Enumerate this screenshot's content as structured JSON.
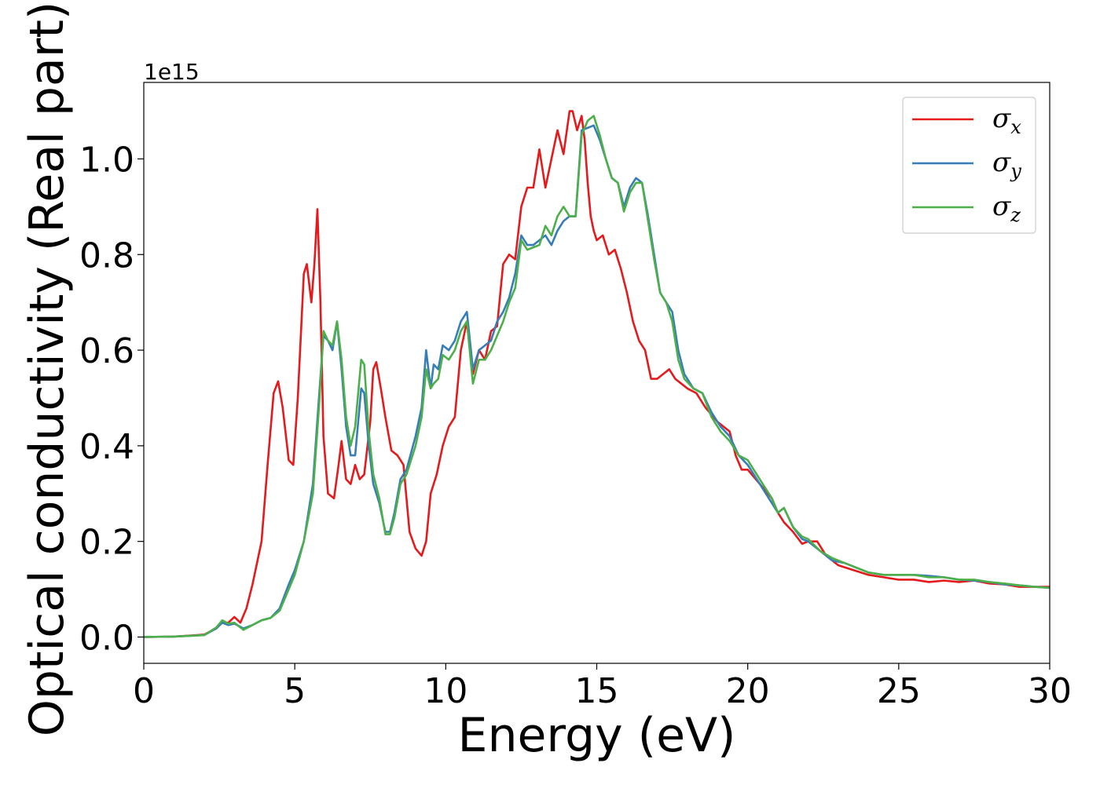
{
  "chart_data": {
    "type": "line",
    "title": "",
    "xlabel": "Energy (eV)",
    "ylabel": "Optical conductivity (Real part)",
    "y_offset_text": "1e15",
    "xlim": [
      0,
      30
    ],
    "ylim": [
      -0.055,
      1.16
    ],
    "x_ticks": [
      0,
      5,
      10,
      15,
      20,
      25,
      30
    ],
    "x_tick_labels": [
      "0",
      "5",
      "10",
      "15",
      "20",
      "25",
      "30"
    ],
    "y_ticks": [
      0.0,
      0.2,
      0.4,
      0.6,
      0.8,
      1.0
    ],
    "y_tick_labels": [
      "0.0",
      "0.2",
      "0.4",
      "0.6",
      "0.8",
      "1.0"
    ],
    "grid": false,
    "legend_position": "top-right",
    "series": [
      {
        "name": "σ",
        "subscript": "x",
        "color": "#e41a1c",
        "x": [
          0,
          1,
          2,
          2.4,
          2.6,
          2.8,
          3.0,
          3.2,
          3.4,
          3.6,
          3.9,
          4.1,
          4.3,
          4.45,
          4.6,
          4.8,
          4.95,
          5.1,
          5.3,
          5.4,
          5.55,
          5.65,
          5.75,
          5.85,
          5.95,
          6.1,
          6.3,
          6.45,
          6.55,
          6.7,
          6.85,
          7.0,
          7.15,
          7.3,
          7.5,
          7.6,
          7.7,
          7.85,
          8.0,
          8.2,
          8.4,
          8.6,
          8.8,
          9.0,
          9.2,
          9.35,
          9.5,
          9.7,
          9.9,
          10.1,
          10.3,
          10.5,
          10.7,
          10.9,
          11.1,
          11.3,
          11.5,
          11.7,
          11.9,
          12.1,
          12.3,
          12.5,
          12.7,
          12.9,
          13.1,
          13.3,
          13.5,
          13.7,
          13.9,
          14.1,
          14.2,
          14.35,
          14.5,
          14.6,
          14.7,
          14.8,
          14.9,
          15.0,
          15.2,
          15.4,
          15.6,
          15.8,
          16.0,
          16.2,
          16.4,
          16.6,
          16.8,
          17.0,
          17.2,
          17.4,
          17.6,
          17.8,
          18.0,
          18.3,
          18.6,
          19.0,
          19.4,
          19.6,
          19.8,
          20.0,
          20.4,
          20.8,
          21.0,
          21.2,
          21.5,
          21.8,
          22.0,
          22.3,
          22.6,
          23.0,
          23.5,
          24.0,
          24.5,
          25.0,
          25.5,
          26.0,
          26.5,
          27.0,
          27.5,
          28.0,
          28.5,
          29.0,
          29.5,
          30.0
        ],
        "y": [
          0,
          0.001,
          0.005,
          0.018,
          0.03,
          0.03,
          0.042,
          0.03,
          0.06,
          0.11,
          0.2,
          0.36,
          0.51,
          0.535,
          0.48,
          0.37,
          0.36,
          0.5,
          0.76,
          0.78,
          0.7,
          0.78,
          0.895,
          0.7,
          0.42,
          0.3,
          0.29,
          0.36,
          0.41,
          0.33,
          0.32,
          0.36,
          0.33,
          0.34,
          0.45,
          0.56,
          0.575,
          0.52,
          0.46,
          0.39,
          0.38,
          0.36,
          0.22,
          0.185,
          0.17,
          0.2,
          0.3,
          0.34,
          0.4,
          0.44,
          0.46,
          0.6,
          0.66,
          0.55,
          0.6,
          0.58,
          0.64,
          0.65,
          0.78,
          0.8,
          0.79,
          0.9,
          0.94,
          0.94,
          1.02,
          0.94,
          1.0,
          1.06,
          1.01,
          1.1,
          1.1,
          1.06,
          1.09,
          1.04,
          0.95,
          0.88,
          0.85,
          0.83,
          0.84,
          0.8,
          0.81,
          0.77,
          0.72,
          0.66,
          0.62,
          0.6,
          0.54,
          0.54,
          0.55,
          0.56,
          0.54,
          0.53,
          0.52,
          0.51,
          0.48,
          0.45,
          0.43,
          0.38,
          0.35,
          0.35,
          0.32,
          0.29,
          0.26,
          0.24,
          0.22,
          0.195,
          0.2,
          0.2,
          0.17,
          0.15,
          0.14,
          0.13,
          0.125,
          0.12,
          0.12,
          0.115,
          0.118,
          0.115,
          0.118,
          0.112,
          0.11,
          0.105,
          0.105,
          0.105
        ]
      },
      {
        "name": "σ",
        "subscript": "y",
        "color": "#377eb8",
        "x": [
          0,
          1,
          2,
          2.4,
          2.6,
          2.8,
          3.0,
          3.3,
          3.6,
          3.9,
          4.2,
          4.5,
          4.8,
          5.0,
          5.3,
          5.6,
          5.8,
          5.95,
          6.1,
          6.25,
          6.4,
          6.55,
          6.7,
          6.85,
          7.0,
          7.2,
          7.3,
          7.45,
          7.6,
          7.8,
          8.0,
          8.15,
          8.3,
          8.5,
          8.7,
          9.0,
          9.2,
          9.35,
          9.5,
          9.6,
          9.75,
          9.9,
          10.1,
          10.3,
          10.5,
          10.7,
          10.9,
          11.1,
          11.3,
          11.5,
          11.7,
          11.9,
          12.1,
          12.3,
          12.5,
          12.7,
          12.9,
          13.1,
          13.3,
          13.5,
          13.7,
          13.9,
          14.1,
          14.3,
          14.5,
          14.7,
          14.9,
          15.1,
          15.3,
          15.5,
          15.7,
          15.9,
          16.1,
          16.3,
          16.5,
          16.7,
          16.9,
          17.1,
          17.3,
          17.5,
          17.7,
          17.9,
          18.2,
          18.5,
          18.8,
          19.1,
          19.4,
          19.7,
          20.0,
          20.4,
          20.8,
          21.0,
          21.2,
          21.5,
          21.8,
          22.0,
          22.4,
          22.8,
          23.2,
          23.6,
          24.0,
          24.5,
          25.0,
          25.5,
          26.0,
          26.5,
          27.0,
          27.5,
          28.0,
          28.5,
          29.0,
          29.5,
          30.0
        ],
        "y": [
          0,
          0.001,
          0.004,
          0.018,
          0.03,
          0.025,
          0.028,
          0.018,
          0.025,
          0.035,
          0.04,
          0.06,
          0.11,
          0.14,
          0.2,
          0.32,
          0.5,
          0.63,
          0.62,
          0.6,
          0.66,
          0.56,
          0.44,
          0.38,
          0.38,
          0.52,
          0.51,
          0.4,
          0.32,
          0.28,
          0.22,
          0.22,
          0.26,
          0.33,
          0.35,
          0.42,
          0.48,
          0.6,
          0.52,
          0.57,
          0.56,
          0.61,
          0.6,
          0.62,
          0.66,
          0.68,
          0.56,
          0.6,
          0.61,
          0.62,
          0.66,
          0.68,
          0.71,
          0.76,
          0.84,
          0.82,
          0.82,
          0.83,
          0.84,
          0.82,
          0.85,
          0.87,
          0.88,
          0.88,
          1.06,
          1.065,
          1.07,
          1.04,
          1.0,
          0.96,
          0.95,
          0.9,
          0.94,
          0.96,
          0.95,
          0.88,
          0.8,
          0.72,
          0.7,
          0.68,
          0.6,
          0.55,
          0.52,
          0.51,
          0.47,
          0.44,
          0.42,
          0.38,
          0.36,
          0.32,
          0.28,
          0.26,
          0.27,
          0.23,
          0.205,
          0.2,
          0.18,
          0.16,
          0.155,
          0.145,
          0.135,
          0.13,
          0.13,
          0.13,
          0.128,
          0.125,
          0.12,
          0.118,
          0.115,
          0.11,
          0.108,
          0.105,
          0.103
        ]
      },
      {
        "name": "σ",
        "subscript": "z",
        "color": "#4daf4a",
        "x": [
          0,
          1,
          2,
          2.4,
          2.6,
          2.8,
          3.0,
          3.3,
          3.6,
          3.9,
          4.2,
          4.5,
          4.8,
          5.0,
          5.3,
          5.6,
          5.8,
          5.95,
          6.1,
          6.25,
          6.4,
          6.55,
          6.7,
          6.85,
          7.0,
          7.2,
          7.3,
          7.45,
          7.6,
          7.8,
          8.0,
          8.15,
          8.3,
          8.5,
          8.7,
          9.0,
          9.2,
          9.35,
          9.5,
          9.6,
          9.75,
          9.9,
          10.1,
          10.3,
          10.5,
          10.7,
          10.9,
          11.1,
          11.3,
          11.5,
          11.7,
          11.9,
          12.1,
          12.3,
          12.5,
          12.7,
          12.9,
          13.1,
          13.3,
          13.5,
          13.7,
          13.9,
          14.1,
          14.3,
          14.5,
          14.7,
          14.9,
          15.1,
          15.3,
          15.5,
          15.7,
          15.9,
          16.1,
          16.3,
          16.5,
          16.7,
          16.9,
          17.1,
          17.3,
          17.5,
          17.7,
          17.9,
          18.2,
          18.5,
          18.8,
          19.1,
          19.4,
          19.7,
          20.0,
          20.4,
          20.8,
          21.0,
          21.2,
          21.5,
          21.8,
          22.0,
          22.4,
          22.8,
          23.2,
          23.6,
          24.0,
          24.5,
          25.0,
          25.5,
          26.0,
          26.5,
          27.0,
          27.5,
          28.0,
          28.5,
          29.0,
          29.5,
          30.0
        ],
        "y": [
          0,
          0.001,
          0.004,
          0.02,
          0.035,
          0.028,
          0.03,
          0.015,
          0.025,
          0.035,
          0.04,
          0.055,
          0.1,
          0.13,
          0.2,
          0.3,
          0.48,
          0.64,
          0.62,
          0.61,
          0.66,
          0.58,
          0.46,
          0.4,
          0.44,
          0.58,
          0.57,
          0.43,
          0.34,
          0.29,
          0.215,
          0.215,
          0.25,
          0.32,
          0.34,
          0.4,
          0.46,
          0.56,
          0.52,
          0.53,
          0.54,
          0.59,
          0.58,
          0.6,
          0.64,
          0.66,
          0.53,
          0.58,
          0.58,
          0.6,
          0.63,
          0.66,
          0.7,
          0.73,
          0.83,
          0.81,
          0.815,
          0.82,
          0.86,
          0.84,
          0.88,
          0.9,
          0.88,
          0.88,
          1.05,
          1.08,
          1.09,
          1.05,
          1.0,
          0.96,
          0.95,
          0.89,
          0.93,
          0.95,
          0.95,
          0.87,
          0.79,
          0.72,
          0.7,
          0.66,
          0.58,
          0.54,
          0.52,
          0.51,
          0.46,
          0.43,
          0.41,
          0.38,
          0.37,
          0.33,
          0.29,
          0.26,
          0.27,
          0.23,
          0.21,
          0.205,
          0.18,
          0.165,
          0.155,
          0.145,
          0.135,
          0.13,
          0.13,
          0.13,
          0.125,
          0.125,
          0.12,
          0.12,
          0.115,
          0.112,
          0.108,
          0.105,
          0.103
        ]
      }
    ]
  }
}
